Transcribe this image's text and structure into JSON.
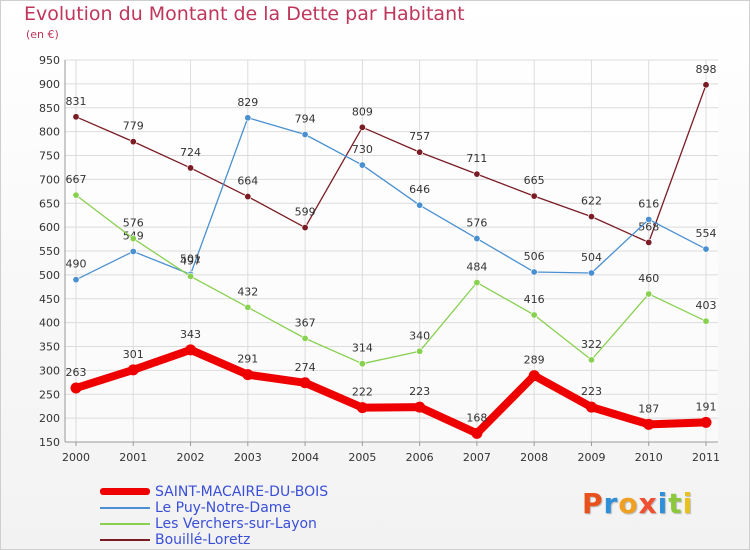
{
  "title": "Evolution du Montant de la Dette par Habitant",
  "subtitle": "(en €)",
  "logo_text": "Proxiti",
  "chart_data": {
    "type": "line",
    "title": "Evolution du Montant de la Dette par Habitant",
    "ylabel": "(en €)",
    "x": [
      "2000",
      "2001",
      "2002",
      "2003",
      "2004",
      "2005",
      "2006",
      "2007",
      "2008",
      "2009",
      "2010",
      "2011"
    ],
    "yticks": [
      150,
      200,
      250,
      300,
      350,
      400,
      450,
      500,
      550,
      600,
      650,
      700,
      750,
      800,
      850,
      900,
      950
    ],
    "ylim": [
      150,
      950
    ],
    "grid": true,
    "legend_position": "bottom-left",
    "series": [
      {
        "name": "Bouillé-Loretz",
        "color": "#7a1c24",
        "values": [
          831,
          779,
          724,
          664,
          599,
          809,
          757,
          711,
          665,
          622,
          568,
          898
        ]
      },
      {
        "name": "Le Puy-Notre-Dame",
        "color": "#4a90d0",
        "values": [
          490,
          549,
          501,
          829,
          794,
          730,
          646,
          576,
          506,
          504,
          616,
          554
        ]
      },
      {
        "name": "Les Verchers-sur-Layon",
        "color": "#88d050",
        "values": [
          667,
          576,
          497,
          432,
          367,
          314,
          340,
          484,
          416,
          322,
          460,
          403
        ]
      },
      {
        "name": "SAINT-MACAIRE-DU-BOIS",
        "color": "#ee0000",
        "values": [
          263,
          301,
          343,
          291,
          274,
          222,
          223,
          168,
          289,
          223,
          187,
          191
        ]
      }
    ],
    "legend": [
      {
        "name": "SAINT-MACAIRE-DU-BOIS",
        "color": "#ee0000"
      },
      {
        "name": "Le Puy-Notre-Dame",
        "color": "#4a90d0"
      },
      {
        "name": "Les Verchers-sur-Layon",
        "color": "#88d050"
      },
      {
        "name": "Bouillé-Loretz",
        "color": "#7a1c24"
      }
    ]
  }
}
